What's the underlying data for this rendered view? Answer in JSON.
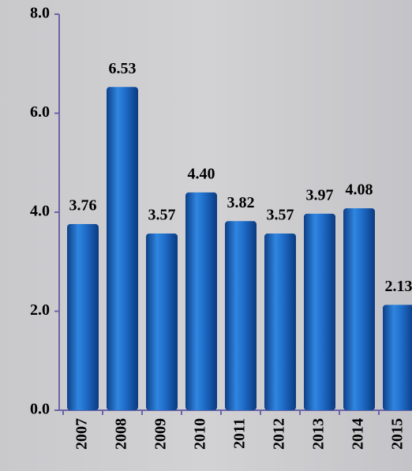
{
  "chart_data": {
    "type": "bar",
    "categories": [
      "2007",
      "2008",
      "2009",
      "2010",
      "2011",
      "2012",
      "2013",
      "2014",
      "2015"
    ],
    "values": [
      3.76,
      6.53,
      3.57,
      4.4,
      3.82,
      3.57,
      3.97,
      4.08,
      2.13
    ],
    "value_labels": [
      "3.76",
      "6.53",
      "3.57",
      "4.40",
      "3.82",
      "3.57",
      "3.97",
      "4.08",
      "2.13"
    ],
    "color": "#1e6cc8",
    "ylim": [
      0,
      8
    ],
    "yticks": [
      {
        "value": 0,
        "label": "0.0"
      },
      {
        "value": 2,
        "label": "2.0"
      },
      {
        "value": 4,
        "label": "4.0"
      },
      {
        "value": 6,
        "label": "6.0"
      },
      {
        "value": 8,
        "label": "8.0"
      }
    ]
  }
}
